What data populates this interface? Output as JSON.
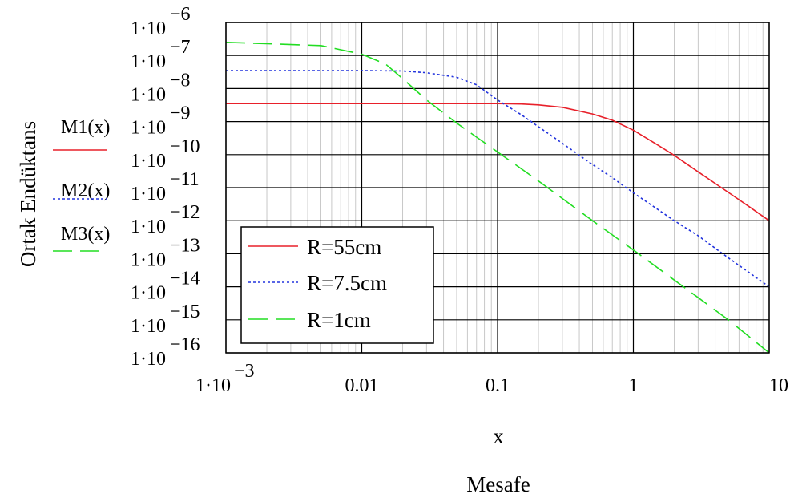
{
  "chart_data": {
    "type": "line",
    "scale": {
      "x": "log",
      "y": "log"
    },
    "xlim": [
      0.001,
      10
    ],
    "ylim": [
      1e-16,
      1e-06
    ],
    "grid": true,
    "xlabel": "x",
    "xlabel2": "Mesafe",
    "ylabel": "Ortak Endüktans",
    "x_ticks": [
      {
        "value": 0.001,
        "mant": "1·10",
        "exp": "−3"
      },
      {
        "value": 0.01,
        "label": "0.01"
      },
      {
        "value": 0.1,
        "label": "0.1"
      },
      {
        "value": 1,
        "label": "1"
      },
      {
        "value": 10,
        "label": "10"
      }
    ],
    "y_ticks": [
      {
        "value": 1e-06,
        "mant": "1·10",
        "exp": "−6"
      },
      {
        "value": 1e-07,
        "mant": "1·10",
        "exp": "−7"
      },
      {
        "value": 1e-08,
        "mant": "1·10",
        "exp": "−8"
      },
      {
        "value": 1e-09,
        "mant": "1·10",
        "exp": "−9"
      },
      {
        "value": 1e-10,
        "mant": "1·10",
        "exp": "−10"
      },
      {
        "value": 1e-11,
        "mant": "1·10",
        "exp": "−11"
      },
      {
        "value": 1e-12,
        "mant": "1·10",
        "exp": "−12"
      },
      {
        "value": 1e-13,
        "mant": "1·10",
        "exp": "−13"
      },
      {
        "value": 1e-14,
        "mant": "1·10",
        "exp": "−14"
      },
      {
        "value": 1e-15,
        "mant": "1·10",
        "exp": "−15"
      },
      {
        "value": 1e-16,
        "mant": "1·10",
        "exp": "−16"
      }
    ],
    "series": [
      {
        "name": "M1(x)",
        "legend": "R=55cm",
        "color": "#e8202a",
        "dash": "solid",
        "x": [
          0.001,
          0.01,
          0.1,
          0.15,
          0.2,
          0.3,
          0.5,
          0.7,
          1,
          1.5,
          2,
          3,
          5,
          7,
          10
        ],
        "y": [
          3.5e-09,
          3.5e-09,
          3.5e-09,
          3.4e-09,
          3.2e-09,
          2.7e-09,
          1.7e-09,
          1.1e-09,
          5.5e-10,
          2e-10,
          9.5e-11,
          3e-11,
          7.2e-12,
          2.8e-12,
          1e-12
        ]
      },
      {
        "name": "M2(x)",
        "legend": "R=7.5cm",
        "color": "#2233dd",
        "dash": "dotted",
        "x": [
          0.001,
          0.01,
          0.02,
          0.03,
          0.05,
          0.07,
          0.1,
          0.15,
          0.2,
          0.3,
          0.5,
          0.7,
          1,
          2,
          3,
          5,
          10
        ],
        "y": [
          3.5e-08,
          3.5e-08,
          3.4e-08,
          3e-08,
          2.2e-08,
          1.3e-08,
          4.5e-09,
          1.6e-09,
          7e-10,
          2.2e-10,
          5e-11,
          2e-11,
          7e-12,
          1e-12,
          3.5e-13,
          7.5e-14,
          1e-14
        ]
      },
      {
        "name": "M3(x)",
        "legend": "R=1cm",
        "color": "#22dd22",
        "dash": "dashed",
        "x": [
          0.001,
          0.005,
          0.01,
          0.015,
          0.02,
          0.03,
          0.05,
          0.1,
          0.2,
          0.5,
          1,
          2,
          5,
          10
        ],
        "y": [
          2.5e-07,
          2e-07,
          1.1e-07,
          5.5e-08,
          2e-08,
          4.5e-09,
          9e-10,
          1.2e-10,
          1.6e-11,
          1e-12,
          1.3e-13,
          1.6e-14,
          1e-15,
          1e-16
        ]
      }
    ]
  }
}
